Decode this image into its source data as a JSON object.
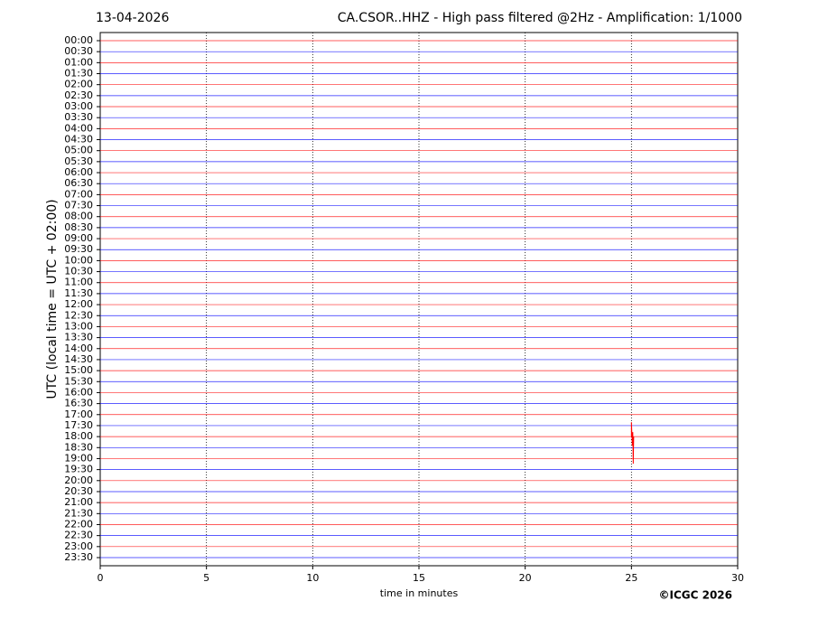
{
  "chart_data": {
    "type": "helicorder",
    "date": "13-04-2026",
    "title": "CA.CSOR..HHZ - High pass filtered @2Hz - Amplification: 1/1000",
    "ylabel": "UTC (local time = UTC + 02:00)",
    "xlabel": "time in minutes",
    "copyright": "©ICGC 2026",
    "categories": [
      "00:00",
      "00:30",
      "01:00",
      "01:30",
      "02:00",
      "02:30",
      "03:00",
      "03:30",
      "04:00",
      "04:30",
      "05:00",
      "05:30",
      "06:00",
      "06:30",
      "07:00",
      "07:30",
      "08:00",
      "08:30",
      "09:00",
      "09:30",
      "10:00",
      "10:30",
      "11:00",
      "11:30",
      "12:00",
      "12:30",
      "13:00",
      "13:30",
      "14:00",
      "14:30",
      "15:00",
      "15:30",
      "16:00",
      "16:30",
      "17:00",
      "17:30",
      "18:00",
      "18:30",
      "19:00",
      "19:30",
      "20:00",
      "20:30",
      "21:00",
      "21:30",
      "22:00",
      "22:30",
      "23:00",
      "23:30"
    ],
    "colors": [
      "#ff0000",
      "#0000ff"
    ],
    "xlim": [
      0,
      30
    ],
    "xticks": [
      0,
      5,
      10,
      15,
      20,
      25,
      30
    ],
    "grid": true,
    "events": [
      {
        "row": "18:00",
        "x": 25
      }
    ]
  }
}
